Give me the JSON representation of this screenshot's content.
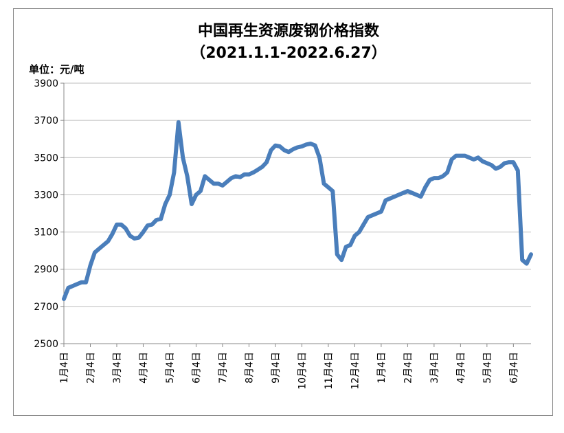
{
  "chart_data": {
    "type": "line",
    "title": "中国再生资源废钢价格指数",
    "subtitle": "（2021.1.1-2022.6.27）",
    "y_label": "单位：元/吨",
    "categories": [
      "1月4日",
      null,
      null,
      null,
      null,
      null,
      "2月4日",
      null,
      null,
      null,
      null,
      null,
      "3月4日",
      null,
      null,
      null,
      null,
      null,
      "4月4日",
      null,
      null,
      null,
      null,
      null,
      "5月4日",
      null,
      null,
      null,
      null,
      null,
      "6月4日",
      null,
      null,
      null,
      null,
      null,
      "7月4日",
      null,
      null,
      null,
      null,
      null,
      "8月4日",
      null,
      null,
      null,
      null,
      null,
      "9月4日",
      null,
      null,
      null,
      null,
      null,
      "10月4日",
      null,
      null,
      null,
      null,
      null,
      "11月4日",
      null,
      null,
      null,
      null,
      null,
      "12月4日",
      null,
      null,
      null,
      null,
      null,
      "1月4日",
      null,
      null,
      null,
      null,
      null,
      "2月4日",
      null,
      null,
      null,
      null,
      null,
      "3月4日",
      null,
      null,
      null,
      null,
      null,
      "4月4日",
      null,
      null,
      null,
      null,
      null,
      "5月4日",
      null,
      null,
      null,
      null,
      null,
      "6月4日",
      null,
      null,
      null,
      null
    ],
    "series": [
      {
        "name": "中国再生资源废钢价格指数",
        "color": "#4a7ebb",
        "values": [
          2740,
          2800,
          2810,
          2820,
          2830,
          2830,
          2920,
          2990,
          3010,
          3030,
          3050,
          3090,
          3140,
          3140,
          3120,
          3080,
          3065,
          3070,
          3100,
          3135,
          3140,
          3165,
          3170,
          3250,
          3300,
          3420,
          3690,
          3500,
          3400,
          3250,
          3300,
          3320,
          3400,
          3380,
          3360,
          3360,
          3350,
          3370,
          3390,
          3400,
          3395,
          3410,
          3410,
          3420,
          3435,
          3450,
          3475,
          3540,
          3565,
          3560,
          3540,
          3530,
          3545,
          3555,
          3560,
          3570,
          3575,
          3565,
          3500,
          3360,
          3340,
          3320,
          2980,
          2950,
          3020,
          3030,
          3080,
          3100,
          3140,
          3180,
          3190,
          3200,
          3210,
          3270,
          3280,
          3290,
          3300,
          3310,
          3320,
          3310,
          3300,
          3290,
          3340,
          3380,
          3390,
          3390,
          3400,
          3420,
          3490,
          3510,
          3510,
          3510,
          3500,
          3490,
          3500,
          3480,
          3470,
          3460,
          3440,
          3450,
          3470,
          3475,
          3475,
          3430,
          2950,
          2930,
          2980
        ]
      }
    ],
    "ylim": [
      2500,
      3900
    ],
    "yticks": [
      2500,
      2700,
      2900,
      3100,
      3300,
      3500,
      3700,
      3900
    ],
    "grid": true
  }
}
